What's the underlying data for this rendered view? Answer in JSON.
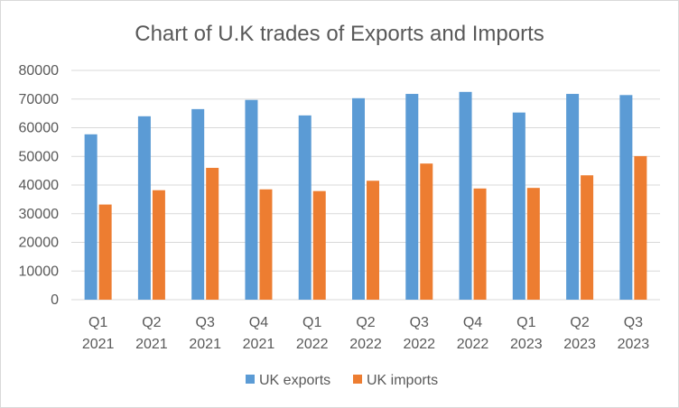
{
  "chart_data": {
    "type": "bar",
    "title": "Chart of U.K trades of Exports and Imports",
    "xlabel": "",
    "ylabel": "",
    "categories": [
      [
        "Q1",
        "2021"
      ],
      [
        "Q2",
        "2021"
      ],
      [
        "Q3",
        "2021"
      ],
      [
        "Q4",
        "2021"
      ],
      [
        "Q1",
        "2022"
      ],
      [
        "Q2",
        "2022"
      ],
      [
        "Q3",
        "2022"
      ],
      [
        "Q4",
        "2022"
      ],
      [
        "Q1",
        "2023"
      ],
      [
        "Q2",
        "2023"
      ],
      [
        "Q3",
        "2023"
      ]
    ],
    "series": [
      {
        "name": "UK exports",
        "color": "#5b9bd5",
        "values": [
          57700,
          64000,
          66500,
          69700,
          64300,
          70300,
          71800,
          72500,
          65300,
          71800,
          71400
        ]
      },
      {
        "name": "UK imports",
        "color": "#ed7d31",
        "values": [
          33200,
          38200,
          46000,
          38500,
          37900,
          41500,
          47500,
          38800,
          39000,
          43400,
          50100
        ]
      }
    ],
    "ylim": [
      0,
      80000
    ],
    "yticks": [
      "0",
      "10000",
      "20000",
      "30000",
      "40000",
      "50000",
      "60000",
      "70000",
      "80000"
    ],
    "grid": true,
    "legend": "bottom"
  }
}
